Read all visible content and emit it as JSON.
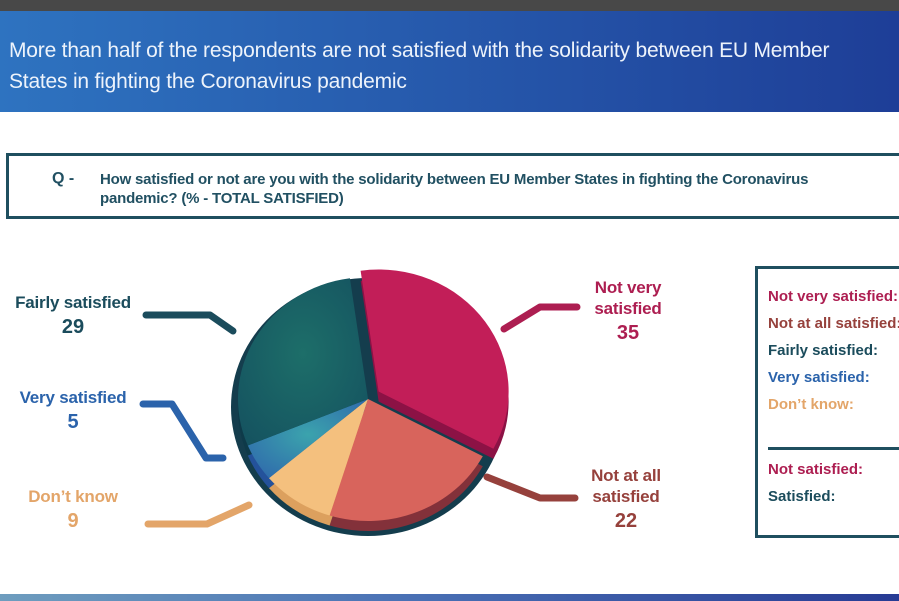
{
  "window": {
    "top_bar_color": "#484848"
  },
  "header": {
    "line1": "More than half of the respondents are not satisfied with the solidarity between EU Member",
    "line2": "States in fighting the Coronavirus pandemic",
    "bg_left": "#2e73c0",
    "bg_right": "#1e3e97",
    "text_color": "#edf3fb"
  },
  "question": {
    "prefix": "Q -",
    "line1": "How satisfied or not are you with the solidarity between EU Member States in fighting the Coronavirus",
    "line2": "pandemic?  (% - TOTAL SATISFIED)",
    "border_color": "#1f4f5f",
    "text_color": "#215062"
  },
  "chart_data": {
    "type": "pie",
    "title": "How satisfied or not are you with the solidarity between EU Member States in fighting the Coronavirus pandemic? (% - TOTAL SATISFIED)",
    "unit": "%",
    "start_angle_deg": -8,
    "direction": "clockwise",
    "base_color": "#143d4d",
    "slices": [
      {
        "label": "Not very satisfied",
        "value": 35,
        "color": "#c21e58",
        "side_color": "#8c1245",
        "label_color": "#ad1e51",
        "exploded": true
      },
      {
        "label": "Not at all satisfied",
        "value": 22,
        "color": "#d8645c",
        "side_color": "#83313a",
        "label_color": "#96413c"
      },
      {
        "label": "Don’t know",
        "value": 9,
        "color": "#f4c07e",
        "side_color": "#dca05e",
        "label_color": "#e3a569"
      },
      {
        "label": "Very satisfied",
        "value": 5,
        "color": "#2e63ab",
        "side_color": "#24529b",
        "label_color": "#2b63ab",
        "inner_color": "#3ba3ad"
      },
      {
        "label": "Fairly satisfied",
        "value": 29,
        "color": "#14505f",
        "side_color": "#0e3a49",
        "label_color": "#1b4c5c",
        "inner_color": "#1d6e69"
      }
    ]
  },
  "legend": {
    "border_color": "#1f4f5f",
    "items": [
      {
        "label": "Not very satisfied:",
        "color": "#ad1e51"
      },
      {
        "label": "Not at all satisfied:",
        "color": "#96413c"
      },
      {
        "label": "Fairly satisfied:",
        "color": "#1b4c5c"
      },
      {
        "label": "Very satisfied:",
        "color": "#2b63ab"
      },
      {
        "label": "Don’t know:",
        "color": "#e3a569"
      }
    ],
    "summary": [
      {
        "label": "Not satisfied:",
        "color": "#ad1e51"
      },
      {
        "label": "Satisfied:",
        "color": "#1b4c5c"
      }
    ]
  },
  "footer": {
    "bar_left": "#6e9dbe",
    "bar_mid": "#4a71b5",
    "bar_right": "#273b94"
  }
}
